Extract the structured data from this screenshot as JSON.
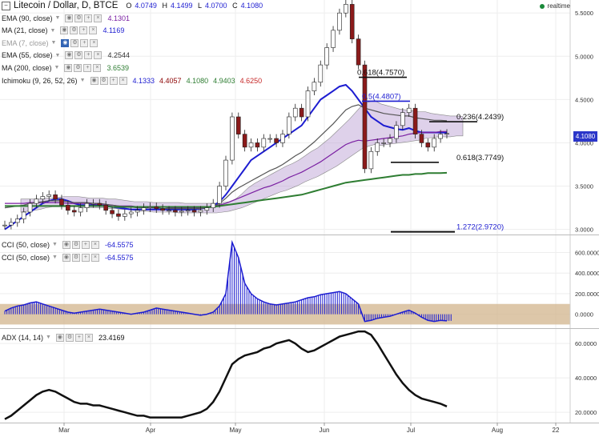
{
  "header": {
    "title": "Litecoin / Dollar, D, BTCE",
    "collapse_symbol": "−",
    "open_label": "O",
    "open": "4.0749",
    "high_label": "H",
    "high": "4.1499",
    "low_label": "L",
    "low": "4.0700",
    "close_label": "C",
    "close": "4.1080",
    "realtime": "realtime"
  },
  "indicators": [
    {
      "label": "EMA (90, close)",
      "value": "4.1301",
      "color": "#7a1fa2"
    },
    {
      "label": "MA (21, close)",
      "value": "4.1169",
      "color": "#1d1dd1"
    },
    {
      "label": "EMA (7, close)",
      "value": "",
      "color": "#999999"
    },
    {
      "label": "EMA (55, close)",
      "value": "4.2544",
      "color": "#333333"
    },
    {
      "label": "MA (200, close)",
      "value": "3.6539",
      "color": "#2e7d32"
    }
  ],
  "ichimoku": {
    "label": "Ichimoku (9, 26, 52, 26)",
    "values": [
      "4.1333",
      "4.4057",
      "4.1080",
      "4.9403",
      "4.6250"
    ],
    "colors": [
      "#1d1dd1",
      "#8b0000",
      "#2e7d32",
      "#2e7d32",
      "#c62828"
    ]
  },
  "cci_rows": [
    {
      "label": "CCI (50, close)",
      "value": "-64.5575"
    },
    {
      "label": "CCI (50, close)",
      "value": "-64.5575"
    }
  ],
  "adx": {
    "label": "ADX (14, 14)",
    "value": "23.4169"
  },
  "price_tag": "4.1080",
  "icons": [
    "eye-icon",
    "settings-icon",
    "plus-icon",
    "close-icon"
  ],
  "chart_data": [
    {
      "type": "line",
      "title": "Litecoin / Dollar, D, BTCE",
      "x_ticks": [
        "Mar",
        "Apr",
        "May",
        "Jun",
        "Jul",
        "Aug",
        "22"
      ],
      "y_ticks": [
        "5.5000",
        "5.0000",
        "4.5000",
        "4.0000",
        "3.5000",
        "3.0000"
      ],
      "ylim": [
        2.95,
        5.65
      ],
      "series": [
        {
          "name": "Price",
          "color": "#222222",
          "values": [
            3.05,
            3.08,
            3.12,
            3.2,
            3.3,
            3.35,
            3.38,
            3.4,
            3.35,
            3.28,
            3.22,
            3.2,
            3.25,
            3.3,
            3.3,
            3.28,
            3.22,
            3.18,
            3.15,
            3.18,
            3.2,
            3.22,
            3.25,
            3.26,
            3.24,
            3.22,
            3.22,
            3.2,
            3.21,
            3.22,
            3.2,
            3.22,
            3.25,
            3.3,
            3.5,
            3.8,
            4.3,
            4.1,
            3.95,
            4.0,
            3.95,
            4.05,
            4.05,
            4.0,
            4.1,
            4.3,
            4.4,
            4.3,
            4.6,
            4.7,
            4.9,
            5.1,
            5.3,
            5.5,
            5.6,
            5.2,
            4.9,
            3.7,
            3.9,
            4.0,
            4.0,
            4.05,
            4.2,
            4.35,
            4.4,
            4.1,
            4.0,
            3.95,
            4.05,
            4.1,
            4.108
          ]
        },
        {
          "name": "MA (21, close)",
          "color": "#1d1dd1",
          "values": [
            3.0,
            3.05,
            3.1,
            3.15,
            3.2,
            3.25,
            3.3,
            3.33,
            3.35,
            3.35,
            3.33,
            3.3,
            3.28,
            3.28,
            3.28,
            3.28,
            3.27,
            3.26,
            3.25,
            3.24,
            3.23,
            3.23,
            3.23,
            3.23,
            3.23,
            3.23,
            3.23,
            3.23,
            3.23,
            3.23,
            3.23,
            3.24,
            3.25,
            3.27,
            3.32,
            3.4,
            3.5,
            3.6,
            3.7,
            3.8,
            3.85,
            3.9,
            3.95,
            4.0,
            4.05,
            4.1,
            4.15,
            4.2,
            4.3,
            4.4,
            4.5,
            4.55,
            4.6,
            4.65,
            4.67,
            4.6,
            4.5,
            4.4,
            4.3,
            4.25,
            4.2,
            4.18,
            4.16,
            4.15,
            4.17,
            4.14,
            4.12,
            4.12,
            4.12,
            4.12,
            4.1169
          ]
        },
        {
          "name": "EMA (90, close)",
          "color": "#7a1fa2",
          "values": [
            3.3,
            3.3,
            3.3,
            3.3,
            3.31,
            3.31,
            3.31,
            3.31,
            3.31,
            3.31,
            3.3,
            3.3,
            3.3,
            3.3,
            3.29,
            3.29,
            3.28,
            3.28,
            3.27,
            3.27,
            3.27,
            3.26,
            3.26,
            3.26,
            3.26,
            3.26,
            3.25,
            3.25,
            3.25,
            3.25,
            3.25,
            3.25,
            3.26,
            3.27,
            3.28,
            3.3,
            3.33,
            3.36,
            3.39,
            3.42,
            3.45,
            3.48,
            3.5,
            3.53,
            3.56,
            3.6,
            3.63,
            3.66,
            3.7,
            3.74,
            3.78,
            3.83,
            3.88,
            3.93,
            3.98,
            4.01,
            4.03,
            4.02,
            4.03,
            4.04,
            4.05,
            4.06,
            4.07,
            4.08,
            4.1,
            4.11,
            4.12,
            4.12,
            4.12,
            4.13,
            4.1301
          ]
        },
        {
          "name": "EMA (55, close)",
          "color": "#555555",
          "values": [
            3.25,
            3.26,
            3.27,
            3.28,
            3.3,
            3.31,
            3.32,
            3.33,
            3.33,
            3.33,
            3.32,
            3.31,
            3.31,
            3.31,
            3.3,
            3.3,
            3.29,
            3.28,
            3.27,
            3.26,
            3.26,
            3.25,
            3.25,
            3.25,
            3.25,
            3.24,
            3.24,
            3.24,
            3.24,
            3.24,
            3.24,
            3.24,
            3.25,
            3.26,
            3.3,
            3.36,
            3.43,
            3.48,
            3.52,
            3.56,
            3.6,
            3.64,
            3.68,
            3.71,
            3.75,
            3.8,
            3.85,
            3.89,
            3.95,
            4.01,
            4.08,
            4.15,
            4.22,
            4.3,
            4.38,
            4.42,
            4.44,
            4.4,
            4.38,
            4.36,
            4.34,
            4.33,
            4.32,
            4.31,
            4.31,
            4.29,
            4.28,
            4.27,
            4.26,
            4.26,
            4.2544
          ]
        },
        {
          "name": "MA (200, close)",
          "color": "#2e7d32",
          "values": [
            3.27,
            3.27,
            3.27,
            3.27,
            3.27,
            3.27,
            3.27,
            3.27,
            3.27,
            3.27,
            3.27,
            3.27,
            3.27,
            3.27,
            3.27,
            3.27,
            3.27,
            3.26,
            3.26,
            3.26,
            3.26,
            3.26,
            3.26,
            3.26,
            3.26,
            3.26,
            3.26,
            3.26,
            3.26,
            3.26,
            3.26,
            3.26,
            3.26,
            3.26,
            3.27,
            3.28,
            3.29,
            3.3,
            3.31,
            3.32,
            3.33,
            3.34,
            3.35,
            3.36,
            3.37,
            3.38,
            3.39,
            3.4,
            3.42,
            3.44,
            3.46,
            3.48,
            3.5,
            3.52,
            3.54,
            3.55,
            3.56,
            3.57,
            3.58,
            3.59,
            3.6,
            3.61,
            3.62,
            3.63,
            3.63,
            3.64,
            3.64,
            3.65,
            3.65,
            3.65,
            3.6539
          ]
        }
      ],
      "levels": [
        {
          "label": "0.618(4.7570)",
          "value": 4.757
        },
        {
          "label": "0.5(4.4807)",
          "value": 4.4807
        },
        {
          "label": "0.236(4.2439)",
          "value": 4.2439
        },
        {
          "label": "0.618(3.7749)",
          "value": 3.7749
        },
        {
          "label": "1.272(2.9720)",
          "value": 2.972
        }
      ]
    },
    {
      "type": "line",
      "title": "CCI (50, close)",
      "y_ticks": [
        "600.0000",
        "400.0000",
        "200.0000",
        "0.0000"
      ],
      "ylim": [
        -120,
        760
      ],
      "band": [
        -100,
        100
      ],
      "series": [
        {
          "name": "CCI (50, close)",
          "color": "#1d1dd1",
          "values": [
            30,
            60,
            80,
            90,
            110,
            120,
            100,
            80,
            60,
            40,
            20,
            10,
            20,
            30,
            40,
            50,
            40,
            30,
            20,
            10,
            0,
            10,
            20,
            40,
            60,
            50,
            40,
            30,
            20,
            10,
            0,
            -10,
            0,
            20,
            80,
            200,
            700,
            550,
            300,
            200,
            150,
            120,
            100,
            90,
            100,
            110,
            120,
            140,
            160,
            170,
            190,
            200,
            210,
            220,
            200,
            150,
            100,
            -70,
            -60,
            -40,
            -30,
            -20,
            0,
            20,
            40,
            10,
            -30,
            -60,
            -70,
            -60,
            -64.5575
          ]
        }
      ]
    },
    {
      "type": "line",
      "title": "ADX (14, 14)",
      "y_ticks": [
        "60.0000",
        "40.0000",
        "20.0000"
      ],
      "ylim": [
        14,
        68
      ],
      "series": [
        {
          "name": "ADX (14, 14)",
          "color": "#111111",
          "values": [
            16,
            18,
            21,
            24,
            27,
            30,
            32,
            33,
            32,
            30,
            28,
            26,
            25,
            25,
            24,
            24,
            23,
            22,
            21,
            20,
            19,
            18,
            18,
            17,
            17,
            17,
            17,
            17,
            17,
            18,
            19,
            20,
            22,
            26,
            32,
            40,
            48,
            51,
            53,
            54,
            55,
            57,
            58,
            60,
            61,
            62,
            60,
            57,
            55,
            56,
            58,
            60,
            62,
            64,
            65,
            66,
            67,
            67,
            65,
            60,
            54,
            48,
            42,
            37,
            33,
            30,
            28,
            27,
            26,
            25,
            23.4169
          ]
        }
      ]
    }
  ]
}
